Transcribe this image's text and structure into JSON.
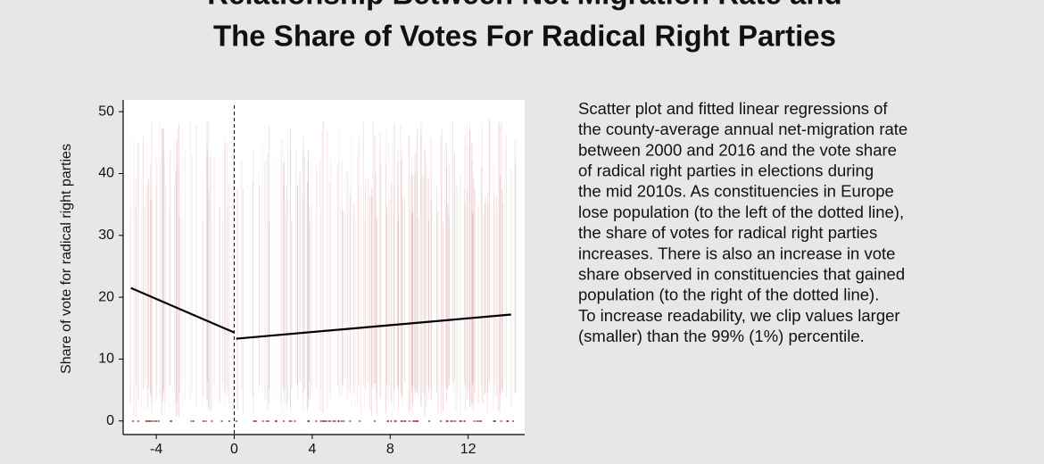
{
  "chart_data": {
    "type": "scatter-regression",
    "title_lines": [
      "Relationship Between Net Migration Rate and",
      "The Share of Votes For Radical Right Parties"
    ],
    "y_label": "Share of vote for radical right parties",
    "xlim": [
      -5.7,
      14.9
    ],
    "ylim": [
      -2.2,
      51.9
    ],
    "xticks": [
      -4,
      0,
      4,
      8,
      12
    ],
    "yticks": [
      0,
      10,
      20,
      30,
      40,
      50
    ],
    "vline": 0,
    "point_color": "#a03030",
    "line_color": "#000000",
    "series": [
      {
        "x": [
          -5.3,
          0
        ],
        "values": [
          21.5,
          14.3
        ]
      },
      {
        "x": [
          0.1,
          14.2
        ],
        "values": [
          13.3,
          17.2
        ]
      }
    ],
    "description": [
      "Scatter plot and fitted linear regressions of",
      "the county-average annual net-migration rate",
      "between 2000 and 2016 and the vote share",
      "of radical right parties in elections during",
      "the mid 2010s. As constituencies in Europe",
      "lose population (to the left of the dotted line),",
      "the share of votes for radical right parties",
      "increases. There is also an increase in vote",
      "share observed in constituencies that gained",
      "population (to the right of the dotted line).",
      "To increase readability, we clip values larger",
      "(smaller) than the 99% (1%) percentile."
    ]
  }
}
